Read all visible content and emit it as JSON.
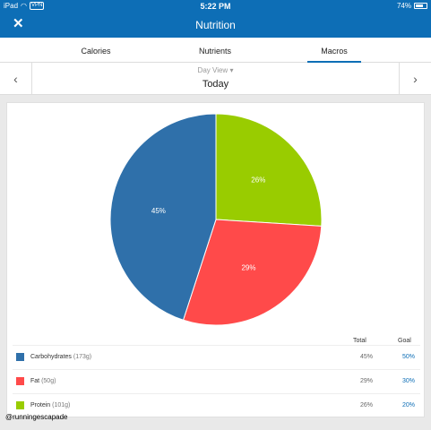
{
  "status": {
    "device": "iPad",
    "vpn": "VPN",
    "time": "5:22 PM",
    "battery": "74%",
    "battery_level": 0.74
  },
  "nav": {
    "close_icon": "close-icon",
    "title": "Nutrition"
  },
  "tabs": [
    {
      "label": "Calories"
    },
    {
      "label": "Nutrients"
    },
    {
      "label": "Macros",
      "active": true
    }
  ],
  "day": {
    "view_label": "Day View",
    "title": "Today"
  },
  "chart_data": {
    "type": "pie",
    "slices": [
      {
        "label": "Carbohydrates",
        "value": 45,
        "color": "#2f70aa"
      },
      {
        "label": "Fat",
        "value": 29,
        "color": "#ff4a4a"
      },
      {
        "label": "Protein",
        "value": 26,
        "color": "#99cc00"
      }
    ]
  },
  "table": {
    "headers": {
      "total": "Total",
      "goal": "Goal"
    },
    "rows": [
      {
        "name": "Carbohydrates",
        "grams": "(173g)",
        "total": "45%",
        "goal": "50%",
        "color": "#2f70aa"
      },
      {
        "name": "Fat",
        "grams": "(50g)",
        "total": "29%",
        "goal": "30%",
        "color": "#ff4a4a"
      },
      {
        "name": "Protein",
        "grams": "(101g)",
        "total": "26%",
        "goal": "20%",
        "color": "#99cc00"
      }
    ]
  },
  "watermark": "@runningescapade"
}
